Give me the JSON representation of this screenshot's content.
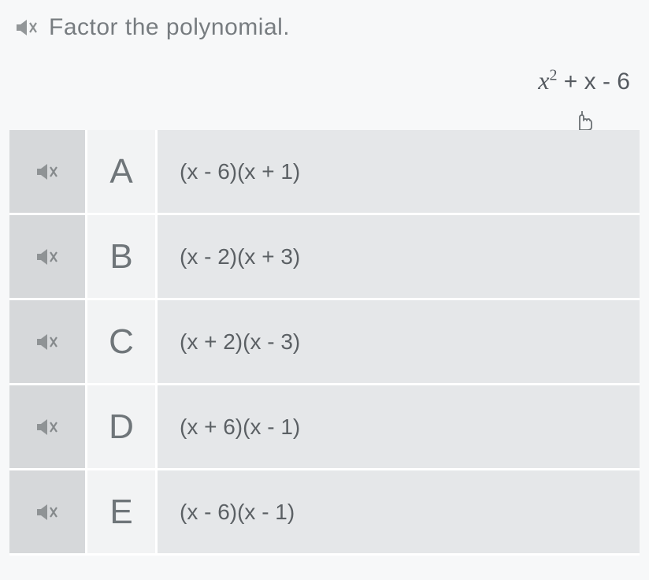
{
  "question": {
    "prompt": "Factor the polynomial.",
    "expression_html": "<span class='x'>x</span><sup>2</sup><span class='rest'> + x - 6</span>"
  },
  "colors": {
    "icon": "#939799",
    "icon_x": "#8a8e90"
  },
  "options": [
    {
      "letter": "A",
      "text": "(x - 6)(x + 1)"
    },
    {
      "letter": "B",
      "text": "(x - 2)(x + 3)"
    },
    {
      "letter": "C",
      "text": "(x + 2)(x - 3)"
    },
    {
      "letter": "D",
      "text": "(x + 6)(x - 1)"
    },
    {
      "letter": "E",
      "text": "(x - 6)(x - 1)"
    }
  ]
}
